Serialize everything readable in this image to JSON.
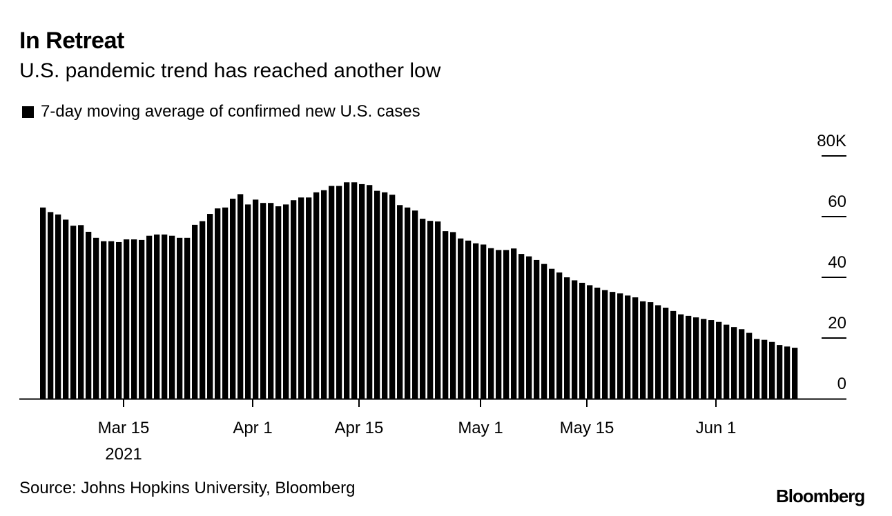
{
  "header": {
    "title": "In Retreat",
    "subtitle": "U.S. pandemic trend has reached another low"
  },
  "legend": {
    "label": "7-day moving average of confirmed new U.S. cases"
  },
  "footer": {
    "source": "Source: Johns Hopkins University, Bloomberg",
    "brand": "Bloomberg"
  },
  "colors": {
    "bar": "#000000",
    "axis": "#000000",
    "background": "#ffffff"
  },
  "chart_data": {
    "type": "bar",
    "legend_position": "top-left",
    "y_axis_side": "right",
    "grid": false,
    "ylim": [
      0,
      80
    ],
    "yticks": [
      {
        "value": 0,
        "label": "0"
      },
      {
        "value": 20,
        "label": "20"
      },
      {
        "value": 40,
        "label": "40"
      },
      {
        "value": 60,
        "label": "60"
      },
      {
        "value": 80,
        "label": "80K"
      }
    ],
    "xlim": [
      "2021-03-04",
      "2021-06-06"
    ],
    "xticks": [
      {
        "date": "2021-03-15",
        "label": "Mar 15",
        "sublabel": "2021"
      },
      {
        "date": "2021-04-01",
        "label": "Apr 1"
      },
      {
        "date": "2021-04-15",
        "label": "Apr 15"
      },
      {
        "date": "2021-05-01",
        "label": "May 1"
      },
      {
        "date": "2021-05-15",
        "label": "May 15"
      },
      {
        "date": "2021-06-01",
        "label": "Jun 1"
      }
    ],
    "series": [
      {
        "start_date": "2021-03-04",
        "values": [
          63.0,
          61.5,
          60.7,
          59.0,
          57.0,
          57.2,
          55.0,
          53.0,
          51.9,
          51.9,
          51.6,
          52.5,
          52.5,
          52.3,
          53.7,
          54.1,
          54.1,
          53.7,
          53.0,
          53.0,
          57.3,
          58.5,
          60.9,
          62.7,
          63.0,
          65.9,
          67.4,
          64.0,
          65.6,
          64.5,
          64.5,
          63.4,
          64.0,
          65.4,
          66.3,
          66.3,
          68.0,
          68.7,
          70.1,
          70.1,
          71.3,
          71.3,
          70.7,
          70.4,
          68.5,
          68.0,
          67.2,
          63.8,
          63.0,
          62.0,
          59.3,
          58.6,
          58.4,
          55.2,
          54.9,
          52.8,
          52.1,
          51.2,
          50.8,
          49.6,
          49.0,
          49.0,
          49.5,
          47.7,
          46.9,
          45.7,
          44.4,
          42.8,
          41.6,
          40.0,
          39.0,
          38.2,
          37.4,
          36.6,
          35.8,
          35.2,
          34.7,
          34.0,
          33.4,
          32.1,
          31.8,
          30.8,
          30.0,
          28.9,
          27.8,
          27.3,
          26.8,
          26.3,
          25.9,
          25.3,
          24.4,
          23.6,
          22.9,
          21.7,
          19.7,
          19.4,
          18.7,
          17.7,
          17.2,
          16.8
        ]
      }
    ]
  }
}
